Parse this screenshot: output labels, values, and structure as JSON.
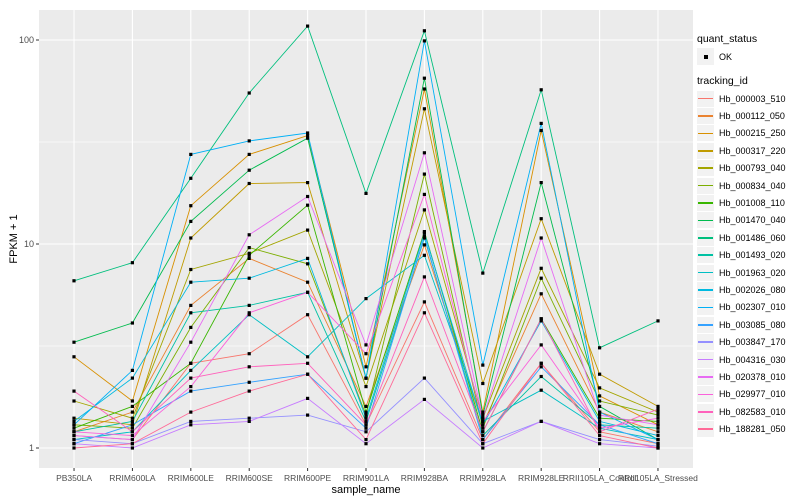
{
  "axes": {
    "x": {
      "label": "sample_name"
    },
    "y": {
      "label": "FPKM + 1",
      "tick_labels": [
        "1",
        "10",
        "100"
      ],
      "tick_values": [
        1,
        10,
        100
      ]
    }
  },
  "legend": {
    "quant_status_title": "quant_status",
    "ok_label": "OK",
    "tracking_id_title": "tracking_id",
    "position": "right"
  },
  "colors": {
    "panel_bg": "#EBEBEB",
    "grid_major": "#FFFFFF",
    "grid_minor": "#FFFFFF",
    "axis_text": "#4D4D4D",
    "tick_mark": "#333333",
    "point": "#000000",
    "legend_key_bg": "#F2F2F2"
  },
  "chart_data": {
    "type": "line",
    "title": "",
    "xlabel": "sample_name",
    "ylabel": "FPKM + 1",
    "y_scale": "log10",
    "ylim": [
      1,
      130
    ],
    "grid": true,
    "legend_position": "right",
    "point_shape": "filled-square-black",
    "categories": [
      "PB350LA",
      "RRIM600LA",
      "RRIM600LE",
      "RRIM600SE",
      "RRIM600PE",
      "RRIM901LA",
      "RRIM928BA",
      "RRIM928LA",
      "RRIM928LE",
      "RRII105LA_Control",
      "RRII105LA_Stressed"
    ],
    "series": [
      {
        "name": "Hb_000003_510",
        "color": "#F8766D",
        "values": [
          1.15,
          1.1,
          2.6,
          2.9,
          4.5,
          1.3,
          5.2,
          1.1,
          2.6,
          1.2,
          1.05
        ]
      },
      {
        "name": "Hb_000112_050",
        "color": "#EA8331",
        "values": [
          1.2,
          1.5,
          5.0,
          8.5,
          6.5,
          1.6,
          9.9,
          1.3,
          5.7,
          1.5,
          1.2
        ]
      },
      {
        "name": "Hb_000215_250",
        "color": "#D89000",
        "values": [
          2.8,
          1.7,
          15.4,
          27.5,
          34,
          2.5,
          57.5,
          1.5,
          36,
          1.8,
          1.3
        ]
      },
      {
        "name": "Hb_000317_220",
        "color": "#C09B00",
        "values": [
          1.4,
          1.3,
          10.7,
          19.8,
          20,
          2.2,
          46,
          2.07,
          13.3,
          2.3,
          1.6
        ]
      },
      {
        "name": "Hb_000793_040",
        "color": "#A3A500",
        "values": [
          1.7,
          1.4,
          7.5,
          9.0,
          11.7,
          2.0,
          14.7,
          1.4,
          7.6,
          1.97,
          1.5
        ]
      },
      {
        "name": "Hb_000834_040",
        "color": "#7CAE00",
        "values": [
          1.3,
          1.25,
          3.9,
          9.6,
          8.0,
          1.45,
          22,
          1.25,
          6.8,
          1.7,
          1.45
        ]
      },
      {
        "name": "Hb_001008_110",
        "color": "#39B600",
        "values": [
          1.25,
          1.6,
          2.6,
          8.8,
          15.5,
          1.5,
          11.5,
          1.2,
          4.3,
          1.4,
          1.35
        ]
      },
      {
        "name": "Hb_001470_040",
        "color": "#00BB4E",
        "values": [
          3.3,
          4.1,
          12.9,
          23,
          33,
          2.2,
          65,
          1.45,
          20,
          1.6,
          1.1
        ]
      },
      {
        "name": "Hb_001486_060",
        "color": "#00BF7D",
        "values": [
          6.6,
          8.1,
          21,
          55,
          117,
          17.7,
          111,
          7.2,
          57,
          3.1,
          4.2
        ]
      },
      {
        "name": "Hb_001493_020",
        "color": "#00C1A3",
        "values": [
          1.2,
          1.35,
          4.6,
          5.0,
          5.8,
          1.35,
          10.7,
          1.15,
          2.24,
          1.3,
          1.25
        ]
      },
      {
        "name": "Hb_001963_020",
        "color": "#00BFC4",
        "values": [
          1.1,
          1.2,
          2.4,
          4.5,
          2.8,
          5.4,
          8.8,
          1.35,
          1.92,
          1.25,
          1.1
        ]
      },
      {
        "name": "Hb_002026_080",
        "color": "#00BAE0",
        "values": [
          1.35,
          2.2,
          6.5,
          6.8,
          8.5,
          1.4,
          11.3,
          1.3,
          4.2,
          1.35,
          1.15
        ]
      },
      {
        "name": "Hb_002307_010",
        "color": "#00B0F6",
        "values": [
          1.3,
          2.4,
          27.5,
          32,
          35,
          2.2,
          99,
          2.55,
          39,
          1.5,
          1.1
        ]
      },
      {
        "name": "Hb_003085_080",
        "color": "#35A2FF",
        "values": [
          1.05,
          1.3,
          1.9,
          2.1,
          2.3,
          1.25,
          10.9,
          1.1,
          2.5,
          1.3,
          1.05
        ]
      },
      {
        "name": "Hb_003847_170",
        "color": "#9590FF",
        "values": [
          1.1,
          1.05,
          1.35,
          1.4,
          1.45,
          1.2,
          2.2,
          1.05,
          1.35,
          1.1,
          1.02
        ]
      },
      {
        "name": "Hb_004316_030",
        "color": "#C77CFF",
        "values": [
          1.05,
          1.0,
          1.3,
          1.35,
          1.75,
          1.05,
          1.73,
          1.0,
          1.35,
          1.05,
          1.0
        ]
      },
      {
        "name": "Hb_020378_010",
        "color": "#E76BF3",
        "values": [
          1.15,
          1.1,
          3.3,
          11.1,
          17.1,
          3.2,
          28,
          1.4,
          10.7,
          1.45,
          1.3
        ]
      },
      {
        "name": "Hb_029977_010",
        "color": "#FA62DB",
        "values": [
          1.2,
          1.15,
          2.0,
          4.6,
          5.8,
          2.9,
          17.5,
          1.35,
          3.2,
          1.25,
          1.4
        ]
      },
      {
        "name": "Hb_082583_010",
        "color": "#FF62BC",
        "values": [
          1.9,
          1.2,
          2.2,
          2.5,
          2.6,
          1.3,
          6.9,
          1.2,
          4.3,
          1.2,
          1.55
        ]
      },
      {
        "name": "Hb_188281_050",
        "color": "#FF6A98",
        "values": [
          1.0,
          1.05,
          1.5,
          1.9,
          2.3,
          1.1,
          4.6,
          1.05,
          2.6,
          1.15,
          1.0
        ]
      }
    ]
  }
}
